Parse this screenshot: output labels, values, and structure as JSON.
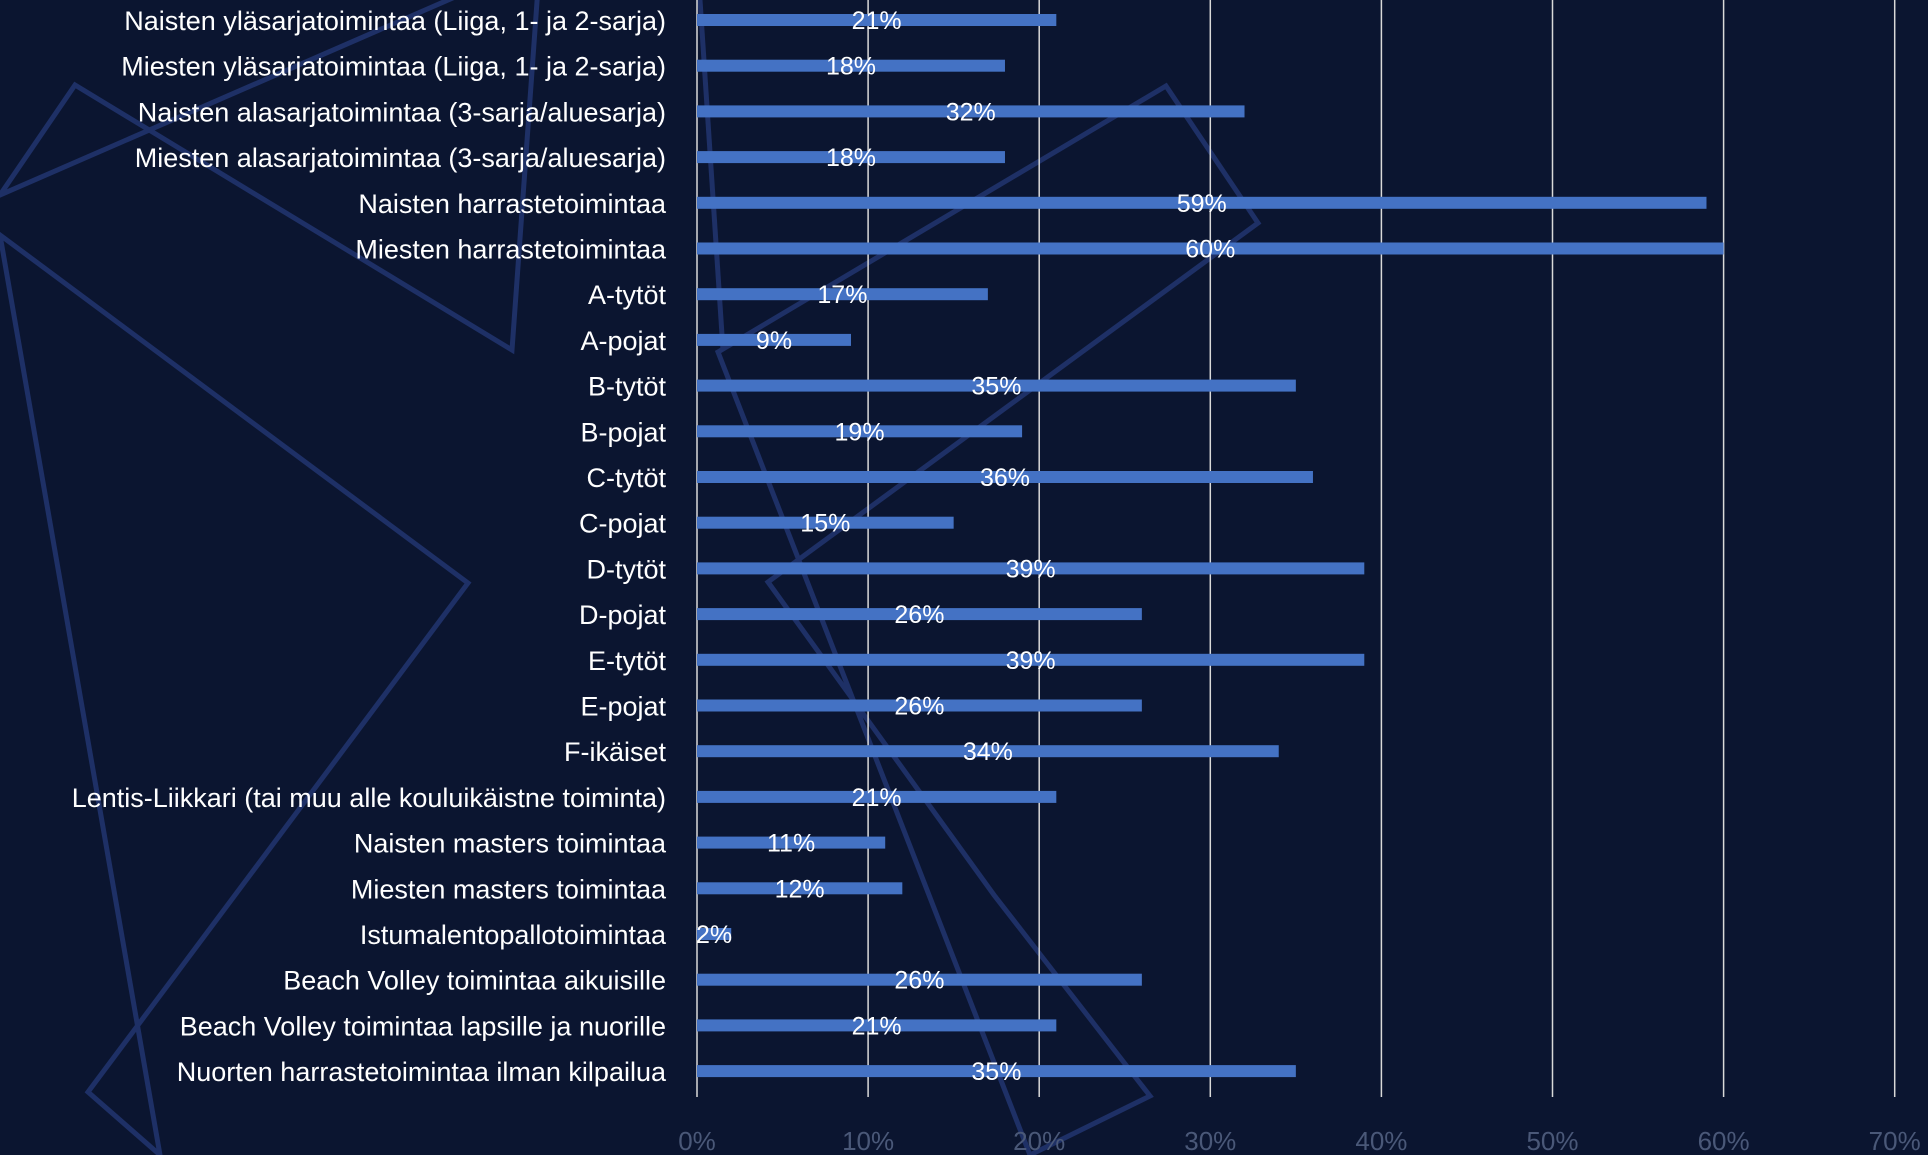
{
  "colors": {
    "background": "#0b1530",
    "bar": "#4472c4",
    "gridline": "#d9d9d9",
    "label_text": "#ffffff",
    "tick_text": "#4a5878",
    "decoration": "#1e3066"
  },
  "chart_data": {
    "type": "bar",
    "orientation": "horizontal",
    "title": "",
    "xlabel": "",
    "ylabel": "",
    "xlim": [
      0,
      0.7
    ],
    "grid": true,
    "legend": "none",
    "categories": [
      "Naisten yläsarjatoimintaa (Liiga, 1- ja 2-sarja)",
      "Miesten yläsarjatoimintaa (Liiga, 1- ja 2-sarja)",
      "Naisten alasarjatoimintaa (3-sarja/aluesarja)",
      "Miesten alasarjatoimintaa (3-sarja/aluesarja)",
      "Naisten harrastetoimintaa",
      "Miesten harrastetoimintaa",
      "A-tytöt",
      "A-pojat",
      "B-tytöt",
      "B-pojat",
      "C-tytöt",
      "C-pojat",
      "D-tytöt",
      "D-pojat",
      "E-tytöt",
      "E-pojat",
      "F-ikäiset",
      "Lentis-Liikkari (tai muu alle kouluikäistne toiminta)",
      "Naisten masters toimintaa",
      "Miesten masters toimintaa",
      "Istumalentopallotoimintaa",
      "Beach Volley toimintaa aikuisille",
      "Beach Volley toimintaa lapsille ja nuorille",
      "Nuorten harrastetoimintaa ilman kilpailua"
    ],
    "values": [
      0.21,
      0.18,
      0.32,
      0.18,
      0.59,
      0.6,
      0.17,
      0.09,
      0.35,
      0.19,
      0.36,
      0.15,
      0.39,
      0.26,
      0.39,
      0.26,
      0.34,
      0.21,
      0.11,
      0.12,
      0.02,
      0.26,
      0.21,
      0.35
    ],
    "data_labels": [
      "21%",
      "18%",
      "32%",
      "18%",
      "59%",
      "60%",
      "17%",
      "9%",
      "35%",
      "19%",
      "36%",
      "15%",
      "39%",
      "26%",
      "39%",
      "26%",
      "34%",
      "21%",
      "11%",
      "12%",
      "2%",
      "26%",
      "21%",
      "35%"
    ],
    "x_ticks": [
      0,
      0.1,
      0.2,
      0.3,
      0.4,
      0.5,
      0.6,
      0.7
    ],
    "x_tick_labels": [
      "0%",
      "10%",
      "20%",
      "30%",
      "40%",
      "50%",
      "60%",
      "70%"
    ]
  }
}
